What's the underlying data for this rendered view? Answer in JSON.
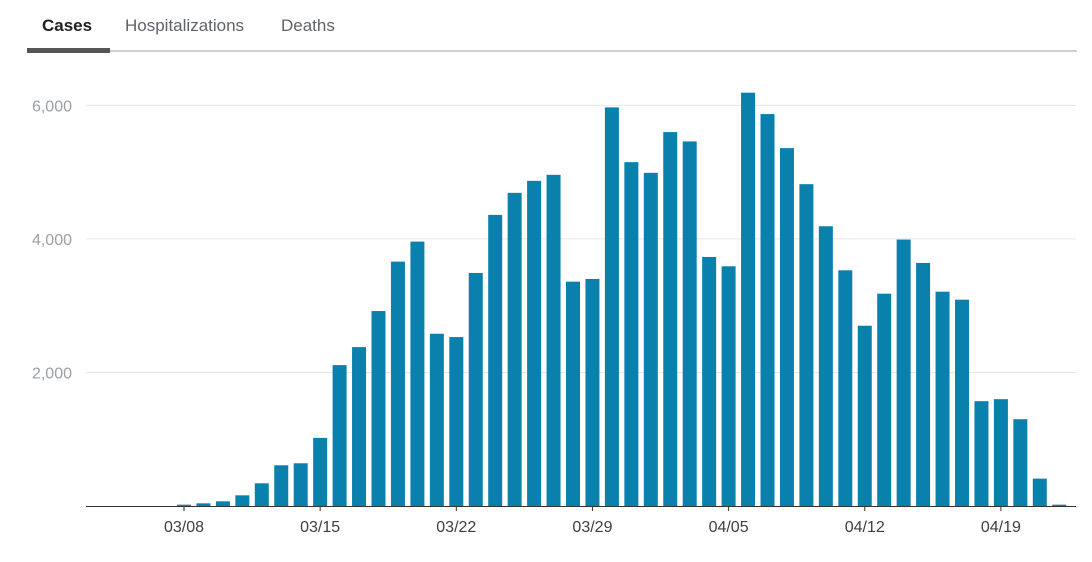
{
  "tabs": [
    {
      "label": "Cases",
      "active": true
    },
    {
      "label": "Hospitalizations",
      "active": false
    },
    {
      "label": "Deaths",
      "active": false
    }
  ],
  "colors": {
    "bar": "#0a80ac",
    "grid": "#e6e6e6",
    "axis": "#333333"
  },
  "chart_data": {
    "type": "bar",
    "title": "",
    "xlabel": "",
    "ylabel": "",
    "ylim": [
      0,
      6500
    ],
    "yticks": [
      {
        "value": 2000,
        "label": "2,000"
      },
      {
        "value": 4000,
        "label": "4,000"
      },
      {
        "value": 6000,
        "label": "6,000"
      }
    ],
    "grid": true,
    "categories": [
      "03/02",
      "03/03",
      "03/04",
      "03/05",
      "03/06",
      "03/07",
      "03/08",
      "03/09",
      "03/10",
      "03/11",
      "03/12",
      "03/13",
      "03/14",
      "03/15",
      "03/16",
      "03/17",
      "03/18",
      "03/19",
      "03/20",
      "03/21",
      "03/22",
      "03/23",
      "03/24",
      "03/25",
      "03/26",
      "03/27",
      "03/28",
      "03/29",
      "03/30",
      "03/31",
      "04/01",
      "04/02",
      "04/03",
      "04/04",
      "04/05",
      "04/06",
      "04/07",
      "04/08",
      "04/09",
      "04/10",
      "04/11",
      "04/12",
      "04/13",
      "04/14",
      "04/15",
      "04/16",
      "04/17",
      "04/18",
      "04/19",
      "04/20",
      "04/21",
      "04/22"
    ],
    "xtick_labels": [
      "03/08",
      "03/15",
      "03/22",
      "03/29",
      "04/05",
      "04/12",
      "04/19"
    ],
    "series": [
      {
        "values": [
          0,
          0,
          0,
          0,
          0,
          0,
          20,
          40,
          70,
          160,
          340,
          610,
          640,
          1020,
          2110,
          2380,
          2920,
          3660,
          3960,
          2580,
          2530,
          3490,
          4360,
          4690,
          4870,
          4960,
          3360,
          3400,
          5970,
          5150,
          4990,
          5600,
          5460,
          3730,
          3590,
          6190,
          5870,
          5360,
          4820,
          4190,
          3530,
          2700,
          3180,
          3990,
          3640,
          3210,
          3090,
          1570,
          1600,
          1300,
          410,
          20
        ]
      }
    ]
  }
}
